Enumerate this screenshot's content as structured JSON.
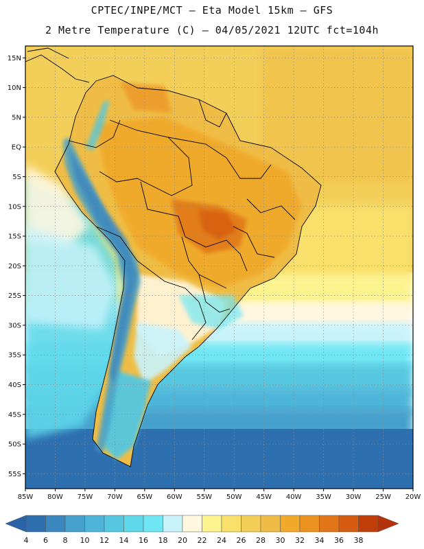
{
  "header": {
    "line1": "CPTEC/INPE/MCT –  Eta Model 15km – GFS",
    "line2": "2 Metre Temperature (C) – 04/05/2021 12UTC fct=104h"
  },
  "map": {
    "lat_labels": [
      "15N",
      "10N",
      "5N",
      "EQ",
      "5S",
      "10S",
      "15S",
      "20S",
      "25S",
      "30S",
      "35S",
      "40S",
      "45S",
      "50S",
      "55S"
    ],
    "lon_labels": [
      "85W",
      "80W",
      "75W",
      "70W",
      "65W",
      "60W",
      "55W",
      "50W",
      "45W",
      "40W",
      "35W",
      "30W",
      "25W",
      "20W"
    ],
    "lon_range": [
      -85,
      -20
    ],
    "lat_range": [
      -57.5,
      17
    ]
  },
  "colorbar": {
    "labels": [
      "4",
      "6",
      "8",
      "10",
      "12",
      "14",
      "16",
      "18",
      "20",
      "22",
      "24",
      "26",
      "28",
      "30",
      "32",
      "34",
      "36",
      "38"
    ],
    "colors": [
      "#2e6fb0",
      "#3a86bf",
      "#45a0cc",
      "#4eb5d8",
      "#55c7e0",
      "#5ed8ea",
      "#6fe6f4",
      "#c9f3fb",
      "#fff7e0",
      "#fdf38e",
      "#f8e06a",
      "#f3cf5a",
      "#efbd45",
      "#f0a92a",
      "#ec9220",
      "#e07618",
      "#d55c10",
      "#c23e08"
    ],
    "under_color": "#2a64a8",
    "over_color": "#b5330b"
  },
  "colors": {
    "border": "#000000",
    "grid": "#8a8a8a"
  }
}
